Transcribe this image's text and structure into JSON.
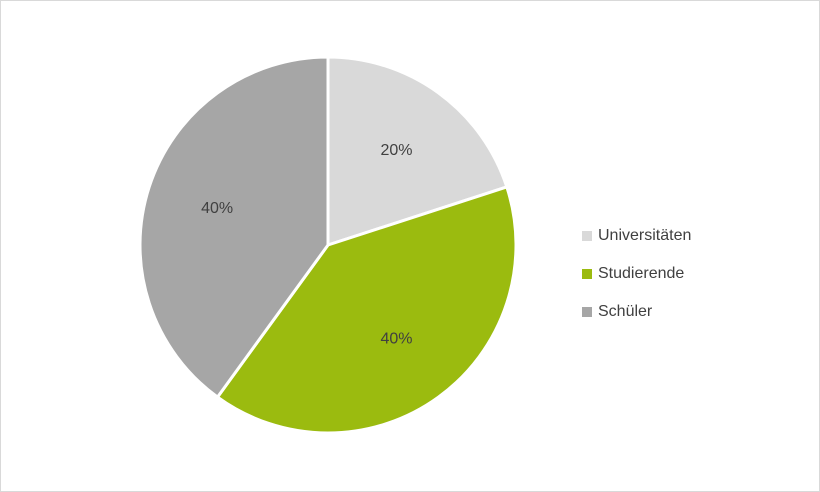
{
  "chart_data": {
    "type": "pie",
    "categories": [
      "Universitäten",
      "Studierende",
      "Schüler"
    ],
    "values": [
      20,
      40,
      40
    ],
    "value_labels": [
      "20%",
      "40%",
      "40%"
    ],
    "colors": [
      "#d9d9d9",
      "#9bbb0f",
      "#a6a6a6"
    ],
    "legend": "right"
  }
}
